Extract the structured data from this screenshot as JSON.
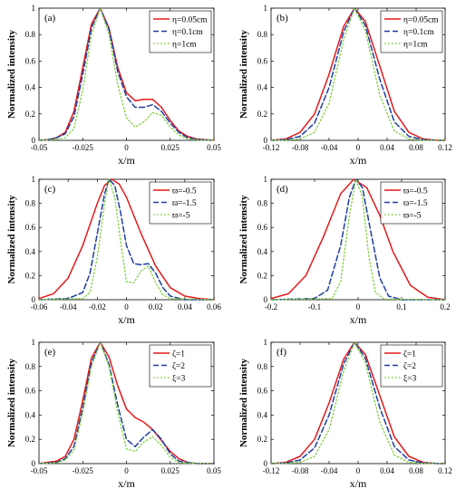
{
  "chart_data": [
    {
      "panel": "(a)",
      "type": "line",
      "xlabel": "x/m",
      "ylabel": "Normalized intensity",
      "xlim": [
        -0.05,
        0.05
      ],
      "ylim": [
        0,
        1
      ],
      "xticks": [
        "-0.05",
        "-0.025",
        "0",
        "0.025",
        "0.05"
      ],
      "yticks": [
        "0",
        "0.2",
        "0.4",
        "0.6",
        "0.8",
        "1"
      ],
      "series": [
        {
          "name": "η=0.05cm",
          "color": "#e41a1c",
          "style": "solid",
          "x": [
            -0.05,
            -0.045,
            -0.04,
            -0.035,
            -0.03,
            -0.025,
            -0.02,
            -0.015,
            -0.01,
            -0.005,
            0,
            0.005,
            0.01,
            0.015,
            0.02,
            0.025,
            0.03,
            0.035,
            0.04,
            0.045,
            0.05
          ],
          "y": [
            0,
            0.005,
            0.02,
            0.06,
            0.22,
            0.55,
            0.88,
            1.0,
            0.85,
            0.55,
            0.36,
            0.3,
            0.31,
            0.31,
            0.25,
            0.15,
            0.07,
            0.03,
            0.01,
            0.005,
            0
          ]
        },
        {
          "name": "η=0.1cm",
          "color": "#1f3f9f",
          "style": "dashed",
          "x": [
            -0.05,
            -0.045,
            -0.04,
            -0.035,
            -0.03,
            -0.025,
            -0.02,
            -0.015,
            -0.01,
            -0.005,
            0,
            0.005,
            0.01,
            0.015,
            0.02,
            0.025,
            0.03,
            0.035,
            0.04,
            0.045,
            0.05
          ],
          "y": [
            0,
            0.005,
            0.02,
            0.05,
            0.18,
            0.5,
            0.85,
            1.0,
            0.84,
            0.52,
            0.33,
            0.25,
            0.25,
            0.27,
            0.22,
            0.13,
            0.06,
            0.02,
            0.008,
            0.003,
            0
          ]
        },
        {
          "name": "η=1cm",
          "color": "#7fd13f",
          "style": "dotted",
          "x": [
            -0.05,
            -0.045,
            -0.04,
            -0.035,
            -0.03,
            -0.025,
            -0.02,
            -0.015,
            -0.01,
            -0.005,
            0,
            0.005,
            0.01,
            0.015,
            0.02,
            0.025,
            0.03,
            0.035,
            0.04,
            0.045,
            0.05
          ],
          "y": [
            0,
            0.002,
            0.008,
            0.02,
            0.09,
            0.38,
            0.8,
            1.0,
            0.8,
            0.42,
            0.17,
            0.1,
            0.14,
            0.21,
            0.19,
            0.1,
            0.04,
            0.01,
            0.003,
            0.001,
            0
          ]
        }
      ],
      "legend": "top-right"
    },
    {
      "panel": "(b)",
      "type": "line",
      "xlabel": "x/m",
      "ylabel": "Normalized intensity",
      "xlim": [
        -0.12,
        0.12
      ],
      "ylim": [
        0,
        1
      ],
      "xticks": [
        "-0.12",
        "-0.08",
        "-0.04",
        "0",
        "0.04",
        "0.08",
        "0.12"
      ],
      "yticks": [
        "0",
        "0.2",
        "0.4",
        "0.6",
        "0.8",
        "1"
      ],
      "series": [
        {
          "name": "η=0.05cm",
          "color": "#e41a1c",
          "style": "solid",
          "x": [
            -0.12,
            -0.1,
            -0.08,
            -0.06,
            -0.04,
            -0.02,
            -0.005,
            0.01,
            0.03,
            0.05,
            0.07,
            0.09,
            0.11,
            0.12
          ],
          "y": [
            0,
            0.01,
            0.06,
            0.2,
            0.5,
            0.86,
            1.0,
            0.9,
            0.56,
            0.22,
            0.06,
            0.01,
            0,
            0
          ]
        },
        {
          "name": "η=0.1cm",
          "color": "#1f3f9f",
          "style": "dashed",
          "x": [
            -0.12,
            -0.1,
            -0.08,
            -0.06,
            -0.04,
            -0.02,
            -0.005,
            0.01,
            0.03,
            0.05,
            0.07,
            0.09,
            0.11,
            0.12
          ],
          "y": [
            0,
            0.005,
            0.03,
            0.13,
            0.4,
            0.82,
            1.0,
            0.87,
            0.46,
            0.14,
            0.03,
            0.005,
            0,
            0
          ]
        },
        {
          "name": "η=1cm",
          "color": "#7fd13f",
          "style": "dotted",
          "x": [
            -0.12,
            -0.1,
            -0.08,
            -0.06,
            -0.04,
            -0.02,
            -0.005,
            0.01,
            0.03,
            0.05,
            0.07,
            0.09,
            0.11,
            0.12
          ],
          "y": [
            0,
            0.002,
            0.01,
            0.06,
            0.28,
            0.76,
            1.0,
            0.83,
            0.34,
            0.07,
            0.01,
            0.001,
            0,
            0
          ]
        }
      ],
      "legend": "top-right"
    },
    {
      "panel": "(c)",
      "type": "line",
      "xlabel": "x/m",
      "ylabel": "Normalized intensity",
      "xlim": [
        -0.06,
        0.06
      ],
      "ylim": [
        0,
        1
      ],
      "xticks": [
        "-0.06",
        "-0.04",
        "-0.02",
        "0",
        "0.02",
        "0.04",
        "0.06"
      ],
      "yticks": [
        "0",
        "0.2",
        "0.4",
        "0.6",
        "0.8",
        "1"
      ],
      "series": [
        {
          "name": "ϖ=-0.5",
          "color": "#e41a1c",
          "style": "solid",
          "x": [
            -0.06,
            -0.05,
            -0.04,
            -0.03,
            -0.02,
            -0.015,
            -0.01,
            -0.005,
            0,
            0.01,
            0.02,
            0.03,
            0.04,
            0.05,
            0.06
          ],
          "y": [
            0.01,
            0.05,
            0.18,
            0.45,
            0.8,
            0.95,
            1.0,
            0.96,
            0.85,
            0.55,
            0.28,
            0.1,
            0.03,
            0.01,
            0
          ]
        },
        {
          "name": "ϖ=-1.5",
          "color": "#1f3f9f",
          "style": "dashed",
          "x": [
            -0.06,
            -0.04,
            -0.03,
            -0.025,
            -0.02,
            -0.015,
            -0.012,
            -0.008,
            -0.004,
            0,
            0.005,
            0.01,
            0.015,
            0.02,
            0.025,
            0.03,
            0.04,
            0.06
          ],
          "y": [
            0,
            0.01,
            0.06,
            0.22,
            0.55,
            0.88,
            1.0,
            0.95,
            0.72,
            0.45,
            0.3,
            0.29,
            0.3,
            0.22,
            0.1,
            0.03,
            0,
            0
          ]
        },
        {
          "name": "ϖ=-5",
          "color": "#7fd13f",
          "style": "dotted",
          "x": [
            -0.06,
            -0.03,
            -0.025,
            -0.02,
            -0.015,
            -0.012,
            -0.008,
            -0.004,
            0,
            0.005,
            0.01,
            0.015,
            0.02,
            0.025,
            0.03,
            0.06
          ],
          "y": [
            0,
            0.01,
            0.06,
            0.35,
            0.8,
            1.0,
            0.85,
            0.48,
            0.15,
            0.14,
            0.24,
            0.28,
            0.14,
            0.04,
            0.01,
            0
          ]
        }
      ],
      "legend": "top-right"
    },
    {
      "panel": "(d)",
      "type": "line",
      "xlabel": "x/m",
      "ylabel": "Normalized intensity",
      "xlim": [
        -0.2,
        0.2
      ],
      "ylim": [
        0,
        1
      ],
      "xticks": [
        "-0.2",
        "-0.1",
        "0",
        "0.1",
        "0.2"
      ],
      "yticks": [
        "0",
        "0.2",
        "0.4",
        "0.6",
        "0.8",
        "1"
      ],
      "series": [
        {
          "name": "ϖ=-0.5",
          "color": "#e41a1c",
          "style": "solid",
          "x": [
            -0.2,
            -0.16,
            -0.12,
            -0.08,
            -0.04,
            -0.01,
            0.02,
            0.05,
            0.08,
            0.12,
            0.16,
            0.2
          ],
          "y": [
            0.01,
            0.05,
            0.2,
            0.52,
            0.88,
            1.0,
            0.93,
            0.7,
            0.4,
            0.12,
            0.02,
            0
          ]
        },
        {
          "name": "ϖ=-1.5",
          "color": "#1f3f9f",
          "style": "dashed",
          "x": [
            -0.2,
            -0.1,
            -0.07,
            -0.04,
            -0.02,
            -0.005,
            0.01,
            0.03,
            0.05,
            0.07,
            0.1,
            0.2
          ],
          "y": [
            0,
            0.01,
            0.08,
            0.45,
            0.85,
            1.0,
            0.93,
            0.55,
            0.18,
            0.03,
            0,
            0
          ]
        },
        {
          "name": "ϖ=-5",
          "color": "#7fd13f",
          "style": "dotted",
          "x": [
            -0.2,
            -0.06,
            -0.04,
            -0.02,
            -0.005,
            0.01,
            0.025,
            0.04,
            0.06,
            0.2
          ],
          "y": [
            0,
            0.01,
            0.15,
            0.7,
            1.0,
            0.85,
            0.35,
            0.06,
            0.005,
            0
          ]
        }
      ],
      "legend": "top-right"
    },
    {
      "panel": "(e)",
      "type": "line",
      "xlabel": "x/m",
      "ylabel": "Normalized intensity",
      "xlim": [
        -0.05,
        0.05
      ],
      "ylim": [
        0,
        1
      ],
      "xticks": [
        "-0.05",
        "-0.025",
        "0",
        "0.025",
        "0.05"
      ],
      "yticks": [
        "0",
        "0.2",
        "0.4",
        "0.6",
        "0.8",
        "1"
      ],
      "series": [
        {
          "name": "ζ=1",
          "color": "#e41a1c",
          "style": "solid",
          "x": [
            -0.05,
            -0.04,
            -0.035,
            -0.03,
            -0.025,
            -0.02,
            -0.015,
            -0.01,
            -0.005,
            0,
            0.005,
            0.01,
            0.015,
            0.02,
            0.025,
            0.03,
            0.035,
            0.04,
            0.05
          ],
          "y": [
            0,
            0.02,
            0.06,
            0.2,
            0.52,
            0.87,
            1.0,
            0.88,
            0.64,
            0.45,
            0.38,
            0.34,
            0.28,
            0.19,
            0.1,
            0.04,
            0.01,
            0,
            0
          ]
        },
        {
          "name": "ζ=2",
          "color": "#1f3f9f",
          "style": "dashed",
          "x": [
            -0.05,
            -0.04,
            -0.035,
            -0.03,
            -0.025,
            -0.02,
            -0.015,
            -0.01,
            -0.005,
            0,
            0.005,
            0.01,
            0.015,
            0.02,
            0.025,
            0.03,
            0.04,
            0.05
          ],
          "y": [
            0,
            0.01,
            0.04,
            0.14,
            0.46,
            0.83,
            1.0,
            0.82,
            0.48,
            0.2,
            0.14,
            0.22,
            0.28,
            0.2,
            0.08,
            0.02,
            0,
            0
          ]
        },
        {
          "name": "ξ=3",
          "color": "#7fd13f",
          "style": "dotted",
          "x": [
            -0.05,
            -0.04,
            -0.035,
            -0.03,
            -0.025,
            -0.02,
            -0.015,
            -0.01,
            -0.005,
            0,
            0.005,
            0.01,
            0.015,
            0.02,
            0.025,
            0.03,
            0.04,
            0.05
          ],
          "y": [
            0,
            0.005,
            0.03,
            0.11,
            0.42,
            0.8,
            1.0,
            0.8,
            0.42,
            0.12,
            0.1,
            0.18,
            0.22,
            0.15,
            0.05,
            0.01,
            0,
            0
          ]
        }
      ],
      "legend": "top-right"
    },
    {
      "panel": "(f)",
      "type": "line",
      "xlabel": "x/m",
      "ylabel": "Normalized intensity",
      "xlim": [
        -0.12,
        0.12
      ],
      "ylim": [
        0,
        1
      ],
      "xticks": [
        "-0.12",
        "-0.08",
        "-0.04",
        "0",
        "0.04",
        "0.08",
        "0.12"
      ],
      "yticks": [
        "0",
        "0.2",
        "0.4",
        "0.6",
        "0.8",
        "1"
      ],
      "series": [
        {
          "name": "ζ=1",
          "color": "#e41a1c",
          "style": "solid",
          "x": [
            -0.12,
            -0.1,
            -0.08,
            -0.06,
            -0.04,
            -0.02,
            -0.005,
            0.01,
            0.03,
            0.05,
            0.07,
            0.09,
            0.11,
            0.12
          ],
          "y": [
            0,
            0.01,
            0.06,
            0.2,
            0.5,
            0.86,
            1.0,
            0.9,
            0.56,
            0.22,
            0.06,
            0.01,
            0,
            0
          ]
        },
        {
          "name": "ζ=2",
          "color": "#1f3f9f",
          "style": "dashed",
          "x": [
            -0.12,
            -0.1,
            -0.08,
            -0.06,
            -0.04,
            -0.02,
            -0.005,
            0.01,
            0.03,
            0.05,
            0.07,
            0.09,
            0.11,
            0.12
          ],
          "y": [
            0,
            0.005,
            0.03,
            0.13,
            0.4,
            0.82,
            1.0,
            0.87,
            0.46,
            0.14,
            0.03,
            0.005,
            0,
            0
          ]
        },
        {
          "name": "ξ=3",
          "color": "#7fd13f",
          "style": "dotted",
          "x": [
            -0.12,
            -0.1,
            -0.08,
            -0.06,
            -0.04,
            -0.02,
            -0.005,
            0.01,
            0.03,
            0.05,
            0.07,
            0.09,
            0.11,
            0.12
          ],
          "y": [
            0,
            0.002,
            0.01,
            0.06,
            0.28,
            0.76,
            1.0,
            0.83,
            0.34,
            0.07,
            0.01,
            0.001,
            0,
            0
          ]
        }
      ],
      "legend": "top-right"
    }
  ]
}
